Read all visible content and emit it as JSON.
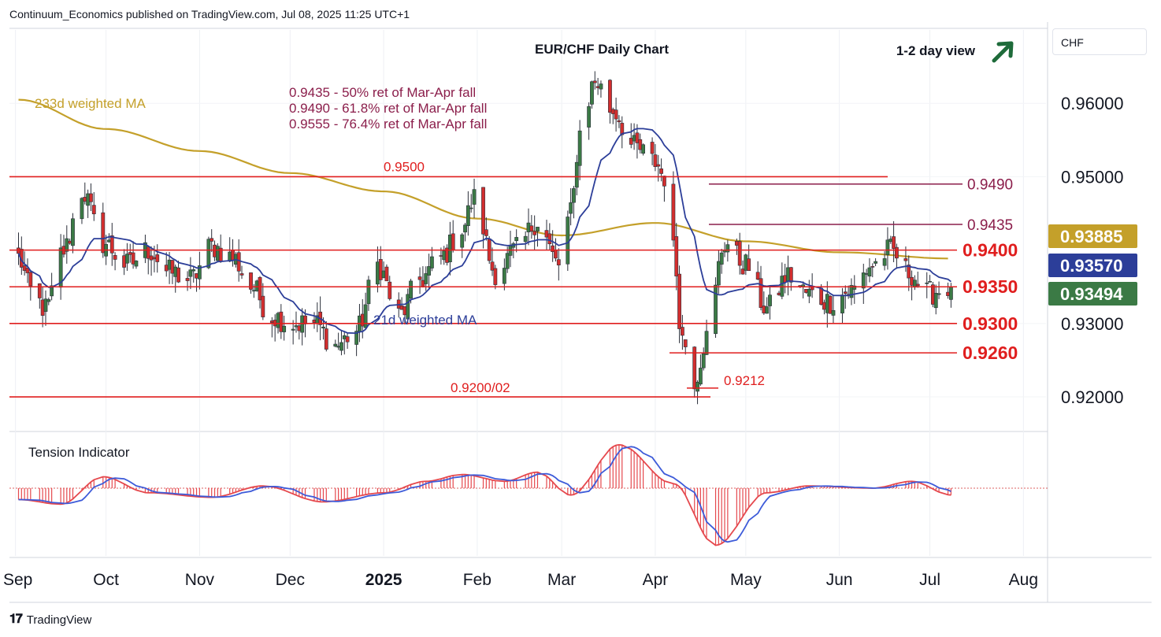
{
  "header": {
    "text": "Continuum_Economics published on TradingView.com, Jul 08, 2025 11:25 UTC+1"
  },
  "footer": {
    "logo": "𝟏𝟕",
    "brand": "TradingView"
  },
  "currency": "CHF",
  "colors": {
    "bull": "#3b7a45",
    "bear": "#d22e2e",
    "ma233": "#c4a02a",
    "ma21": "#2c3e99",
    "level": "#e01e1e",
    "fib": "#8b1e4b",
    "arrow": "#1e6b3a"
  },
  "chart_data": {
    "type": "candlestick",
    "title": "EUR/CHF Daily Chart",
    "view_label": "1-2 day view",
    "ylim": [
      0.9155,
      0.97
    ],
    "y_ticks": [
      "0.96000",
      "0.95000",
      "0.93000",
      "0.92000"
    ],
    "x_ticks": [
      "Sep",
      "Oct",
      "Nov",
      "Dec",
      "2025",
      "Feb",
      "Mar",
      "Apr",
      "May",
      "Jun",
      "Jul",
      "Aug"
    ],
    "price_badges": [
      {
        "label": "0.93885",
        "value": 0.93885,
        "color": "#c4a02a"
      },
      {
        "label": "0.93570",
        "value": 0.9357,
        "color": "#2c3e99"
      },
      {
        "label": "0.93494",
        "value": 0.93494,
        "color": "#3b7a45"
      }
    ],
    "levels": [
      {
        "label": "0.9400",
        "value": 0.94,
        "side": "right"
      },
      {
        "label": "0.9350",
        "value": 0.935,
        "side": "right"
      },
      {
        "label": "0.9300",
        "value": 0.93,
        "side": "right"
      },
      {
        "label": "0.9260",
        "value": 0.926,
        "side": "right"
      },
      {
        "label": "0.9500",
        "value": 0.95,
        "side": "inline"
      },
      {
        "label": "0.9200/02",
        "value": 0.92,
        "side": "inline"
      },
      {
        "label": "0.9212",
        "value": 0.9212,
        "side": "inline"
      }
    ],
    "fib_levels": [
      {
        "label": "0.9490",
        "value": 0.949
      },
      {
        "label": "0.9435",
        "value": 0.9435
      }
    ],
    "fib_notes": [
      "0.9435 - 50% ret of Mar-Apr fall",
      "0.9490 - 61.8% ret of Mar-Apr fall",
      "0.9555 - 76.4% ret of Mar-Apr fall"
    ],
    "ma_labels": {
      "ma233": "233d weighted MA",
      "ma21": "21d weighted MA"
    },
    "indicator_title": "Tension Indicator",
    "anchors": [
      [
        "2024-09-02",
        0.939
      ],
      [
        "2024-09-06",
        0.9345
      ],
      [
        "2024-09-11",
        0.932
      ],
      [
        "2024-09-17",
        0.94
      ],
      [
        "2024-09-23",
        0.948
      ],
      [
        "2024-09-30",
        0.941
      ],
      [
        "2024-10-08",
        0.938
      ],
      [
        "2024-10-15",
        0.94
      ],
      [
        "2024-10-22",
        0.937
      ],
      [
        "2024-10-29",
        0.936
      ],
      [
        "2024-11-05",
        0.9405
      ],
      [
        "2024-11-12",
        0.939
      ],
      [
        "2024-11-18",
        0.935
      ],
      [
        "2024-11-25",
        0.931
      ],
      [
        "2024-12-02",
        0.93
      ],
      [
        "2024-12-09",
        0.93
      ],
      [
        "2024-12-16",
        0.927
      ],
      [
        "2024-12-23",
        0.929
      ],
      [
        "2024-12-30",
        0.938
      ],
      [
        "2025-01-06",
        0.931
      ],
      [
        "2025-01-13",
        0.936
      ],
      [
        "2025-01-20",
        0.939
      ],
      [
        "2025-01-27",
        0.943
      ],
      [
        "2025-01-31",
        0.947
      ],
      [
        "2025-02-07",
        0.937
      ],
      [
        "2025-02-14",
        0.94
      ],
      [
        "2025-02-21",
        0.944
      ],
      [
        "2025-02-28",
        0.938
      ],
      [
        "2025-03-04",
        0.945
      ],
      [
        "2025-03-07",
        0.956
      ],
      [
        "2025-03-12",
        0.963
      ],
      [
        "2025-03-18",
        0.959
      ],
      [
        "2025-03-25",
        0.954
      ],
      [
        "2025-04-01",
        0.952
      ],
      [
        "2025-04-04",
        0.95
      ],
      [
        "2025-04-07",
        0.94
      ],
      [
        "2025-04-10",
        0.928
      ],
      [
        "2025-04-14",
        0.9225
      ],
      [
        "2025-04-18",
        0.928
      ],
      [
        "2025-04-24",
        0.941
      ],
      [
        "2025-05-01",
        0.938
      ],
      [
        "2025-05-08",
        0.932
      ],
      [
        "2025-05-15",
        0.9365
      ],
      [
        "2025-05-22",
        0.934
      ],
      [
        "2025-05-29",
        0.933
      ],
      [
        "2025-06-05",
        0.9345
      ],
      [
        "2025-06-12",
        0.938
      ],
      [
        "2025-06-18",
        0.94
      ],
      [
        "2025-06-24",
        0.937
      ],
      [
        "2025-06-30",
        0.934
      ],
      [
        "2025-07-04",
        0.9345
      ],
      [
        "2025-07-08",
        0.935
      ]
    ],
    "ma233_anchors": [
      [
        "2024-09-02",
        0.9605
      ],
      [
        "2024-10-01",
        0.9565
      ],
      [
        "2024-11-01",
        0.9535
      ],
      [
        "2024-12-01",
        0.9505
      ],
      [
        "2025-01-01",
        0.948
      ],
      [
        "2025-02-01",
        0.9443
      ],
      [
        "2025-03-01",
        0.942
      ],
      [
        "2025-04-01",
        0.9437
      ],
      [
        "2025-05-01",
        0.9412
      ],
      [
        "2025-06-01",
        0.9397
      ],
      [
        "2025-07-08",
        0.93885
      ]
    ],
    "tension_anchors": [
      [
        "2024-09-02",
        -0.25
      ],
      [
        "2024-09-16",
        -0.35
      ],
      [
        "2024-09-30",
        0.25
      ],
      [
        "2024-10-15",
        -0.1
      ],
      [
        "2024-11-05",
        -0.2
      ],
      [
        "2024-11-22",
        0.05
      ],
      [
        "2024-12-12",
        -0.3
      ],
      [
        "2025-01-01",
        -0.1
      ],
      [
        "2025-01-15",
        0.15
      ],
      [
        "2025-01-27",
        0.3
      ],
      [
        "2025-02-10",
        0.15
      ],
      [
        "2025-02-21",
        0.35
      ],
      [
        "2025-03-04",
        -0.15
      ],
      [
        "2025-03-20",
        0.95
      ],
      [
        "2025-04-07",
        0.1
      ],
      [
        "2025-04-21",
        -1.25
      ],
      [
        "2025-05-08",
        -0.1
      ],
      [
        "2025-05-22",
        0.05
      ],
      [
        "2025-06-12",
        0.0
      ],
      [
        "2025-06-25",
        0.15
      ],
      [
        "2025-07-08",
        -0.15
      ]
    ]
  }
}
